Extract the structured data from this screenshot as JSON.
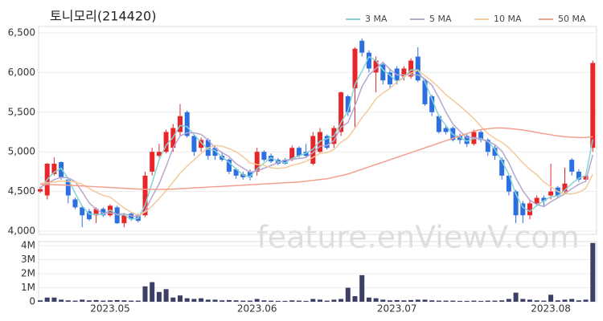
{
  "chart_data": [
    {
      "type": "candlestick",
      "title": "토니모리(214420)",
      "annotation": "feature.enViewV.com",
      "open": [
        4500,
        4450,
        4720,
        4870,
        4650,
        4400,
        4300,
        4250,
        4200,
        4280,
        4200,
        4300,
        4100,
        4220,
        4200,
        4200,
        4750,
        4950,
        5000,
        5050,
        5250,
        5500,
        5200,
        5050,
        5150,
        5050,
        4950,
        4900,
        4780,
        4720,
        4750,
        4750,
        5000,
        4950,
        4900,
        4900,
        4900,
        5050,
        5000,
        4850,
        5000,
        5200,
        5100,
        5250,
        5700,
        5800,
        6400,
        6250,
        6000,
        6100,
        6000,
        6050,
        5950,
        5950,
        6200,
        5900,
        5700,
        5450,
        5300,
        5300,
        5200,
        5200,
        5100,
        5250,
        5150,
        5050,
        4900,
        4700,
        4500,
        4350,
        4200,
        4350,
        4420,
        4450,
        4550,
        4500,
        4900,
        4750,
        4650,
        5050
      ],
      "high": [
        4560,
        4860,
        4930,
        4880,
        4660,
        4420,
        4310,
        4280,
        4300,
        4300,
        4340,
        4320,
        4230,
        4240,
        4220,
        4750,
        5050,
        5100,
        5280,
        5350,
        5600,
        5520,
        5220,
        5180,
        5170,
        5080,
        5000,
        4920,
        4800,
        4750,
        4780,
        5050,
        5020,
        4980,
        4920,
        4920,
        5080,
        5070,
        5100,
        5250,
        5300,
        5220,
        5330,
        5760,
        5720,
        6320,
        6430,
        6280,
        6200,
        6120,
        6050,
        6080,
        6080,
        6180,
        6320,
        5920,
        5720,
        5470,
        5330,
        5320,
        5230,
        5230,
        5280,
        5270,
        5170,
        5080,
        4930,
        4720,
        4520,
        4380,
        4400,
        4450,
        4450,
        4850,
        4570,
        4800,
        4920,
        4780,
        4720,
        6150
      ],
      "low": [
        4480,
        4400,
        4700,
        4650,
        4350,
        4280,
        4050,
        4130,
        4100,
        4180,
        4180,
        4090,
        4050,
        4130,
        4110,
        4180,
        4700,
        4930,
        4980,
        5000,
        5200,
        5180,
        4950,
        5000,
        4900,
        4900,
        4880,
        4720,
        4660,
        4650,
        4640,
        4700,
        4880,
        4860,
        4830,
        4840,
        4880,
        4930,
        4930,
        4830,
        4980,
        5030,
        5050,
        5200,
        5450,
        5300,
        6200,
        6000,
        5750,
        5850,
        5800,
        5850,
        5900,
        5920,
        5880,
        5580,
        5450,
        5230,
        5220,
        5130,
        5100,
        5060,
        5080,
        5120,
        4950,
        4900,
        4650,
        4450,
        4100,
        4100,
        4150,
        4320,
        4320,
        4400,
        4420,
        4480,
        4700,
        4620,
        4620,
        5000
      ],
      "close": [
        4530,
        4850,
        4850,
        4680,
        4450,
        4300,
        4200,
        4150,
        4280,
        4200,
        4320,
        4100,
        4200,
        4150,
        4130,
        4700,
        5000,
        5000,
        5250,
        5300,
        5450,
        5200,
        5000,
        5150,
        4950,
        4950,
        4900,
        4750,
        4700,
        4680,
        4680,
        5000,
        4900,
        4880,
        4850,
        4850,
        5050,
        4950,
        4950,
        5200,
        5250,
        5050,
        5300,
        5750,
        5500,
        6300,
        6250,
        6050,
        6150,
        5900,
        5850,
        5900,
        6050,
        6150,
        5900,
        5600,
        5500,
        5250,
        5250,
        5150,
        5150,
        5100,
        5250,
        5150,
        5000,
        4950,
        4700,
        4500,
        4200,
        4200,
        4350,
        4420,
        4380,
        4500,
        4450,
        4600,
        4750,
        4650,
        4700,
        6120
      ],
      "up_color": "#e8262a",
      "down_color": "#2b6fe0",
      "series": [
        {
          "name": "3 MA",
          "color": "#86d3d3",
          "values": [
            4530,
            4650,
            4743,
            4793,
            4660,
            4477,
            4317,
            4217,
            4210,
            4210,
            4267,
            4207,
            4207,
            4150,
            4160,
            4327,
            4610,
            4900,
            5083,
            5183,
            5333,
            5317,
            5217,
            5117,
            5033,
            5017,
            4933,
            4867,
            4783,
            4710,
            4687,
            4787,
            4860,
            4927,
            4877,
            4860,
            4917,
            4950,
            4983,
            5033,
            5133,
            5167,
            5200,
            5367,
            5517,
            5850,
            6017,
            6200,
            6150,
            6033,
            5967,
            5883,
            5933,
            6033,
            6033,
            5883,
            5667,
            5450,
            5333,
            5217,
            5183,
            5133,
            5167,
            5167,
            5133,
            5033,
            4883,
            4717,
            4467,
            4300,
            4250,
            4323,
            4383,
            4433,
            4443,
            4517,
            4600,
            4667,
            4700,
            5157
          ]
        },
        {
          "name": "5 MA",
          "color": "#b6a6d0",
          "values": [
            4550,
            4600,
            4650,
            4680,
            4672,
            4626,
            4496,
            4356,
            4276,
            4226,
            4230,
            4210,
            4220,
            4194,
            4180,
            4256,
            4436,
            4596,
            4816,
            5050,
            5200,
            5240,
            5240,
            5220,
            5150,
            5050,
            4990,
            4940,
            4850,
            4796,
            4742,
            4762,
            4792,
            4828,
            4862,
            4896,
            4906,
            4916,
            4930,
            4990,
            5070,
            5080,
            5140,
            5310,
            5370,
            5580,
            5820,
            5970,
            6050,
            6130,
            6040,
            5970,
            5970,
            5970,
            5970,
            5920,
            5840,
            5680,
            5500,
            5350,
            5260,
            5180,
            5180,
            5160,
            5130,
            5090,
            5010,
            4860,
            4670,
            4510,
            4390,
            4334,
            4310,
            4370,
            4420,
            4470,
            4536,
            4590,
            4630,
            4964
          ]
        },
        {
          "name": "10 MA",
          "color": "#f4c99c",
          "values": [
            4600,
            4610,
            4620,
            4630,
            4630,
            4620,
            4590,
            4540,
            4490,
            4450,
            4430,
            4360,
            4290,
            4240,
            4200,
            4240,
            4320,
            4410,
            4510,
            4620,
            4730,
            4820,
            4900,
            4980,
            5050,
            5080,
            5070,
            5040,
            5000,
            4940,
            4860,
            4840,
            4830,
            4800,
            4790,
            4800,
            4830,
            4850,
            4880,
            4930,
            4980,
            4990,
            5030,
            5120,
            5180,
            5300,
            5430,
            5540,
            5670,
            5740,
            5800,
            5880,
            5950,
            5990,
            6030,
            5960,
            5890,
            5810,
            5720,
            5650,
            5580,
            5500,
            5420,
            5320,
            5230,
            5170,
            5120,
            5050,
            4960,
            4860,
            4780,
            4710,
            4620,
            4560,
            4500,
            4470,
            4470,
            4490,
            4540,
            4720
          ]
        },
        {
          "name": "50 MA",
          "color": "#f2a08e",
          "values": [
            4590,
            4588,
            4585,
            4582,
            4578,
            4574,
            4570,
            4565,
            4560,
            4555,
            4550,
            4545,
            4540,
            4535,
            4530,
            4528,
            4526,
            4526,
            4528,
            4530,
            4535,
            4540,
            4545,
            4550,
            4555,
            4560,
            4565,
            4570,
            4575,
            4580,
            4585,
            4590,
            4595,
            4600,
            4605,
            4610,
            4615,
            4620,
            4630,
            4640,
            4650,
            4660,
            4680,
            4700,
            4720,
            4750,
            4780,
            4810,
            4840,
            4870,
            4900,
            4930,
            4960,
            4990,
            5020,
            5050,
            5080,
            5110,
            5140,
            5170,
            5200,
            5230,
            5260,
            5280,
            5290,
            5300,
            5300,
            5295,
            5285,
            5275,
            5260,
            5245,
            5230,
            5215,
            5200,
            5190,
            5185,
            5180,
            5180,
            5190
          ]
        }
      ],
      "ylim": [
        3960,
        6580
      ],
      "yticks": [
        {
          "value": 4000,
          "label": "4,000"
        },
        {
          "value": 4500,
          "label": "4,500"
        },
        {
          "value": 5000,
          "label": "5,000"
        },
        {
          "value": 5500,
          "label": "5,500"
        },
        {
          "value": 6000,
          "label": "6,000"
        },
        {
          "value": 6500,
          "label": "6,500"
        }
      ],
      "grid": true
    },
    {
      "type": "bar",
      "color": "#3c3f66",
      "categories": [
        null,
        null,
        null,
        null,
        null,
        null,
        null,
        null,
        null,
        null,
        "2023.05",
        null,
        null,
        null,
        null,
        null,
        null,
        null,
        null,
        null,
        null,
        null,
        null,
        null,
        null,
        null,
        null,
        null,
        null,
        null,
        null,
        "2023.06",
        null,
        null,
        null,
        null,
        null,
        null,
        null,
        null,
        null,
        null,
        null,
        null,
        null,
        null,
        null,
        null,
        null,
        null,
        null,
        "2023.07",
        null,
        null,
        null,
        null,
        null,
        null,
        null,
        null,
        null,
        null,
        null,
        null,
        null,
        null,
        null,
        null,
        null,
        null,
        null,
        null,
        null,
        "2023.08",
        null,
        null,
        null,
        null,
        null,
        null
      ],
      "values": [
        100000,
        300000,
        300000,
        150000,
        100000,
        80000,
        150000,
        100000,
        120000,
        80000,
        100000,
        120000,
        100000,
        80000,
        80000,
        1100000,
        1400000,
        700000,
        900000,
        300000,
        450000,
        250000,
        200000,
        250000,
        150000,
        150000,
        100000,
        120000,
        100000,
        80000,
        80000,
        200000,
        100000,
        80000,
        60000,
        60000,
        100000,
        80000,
        60000,
        200000,
        150000,
        80000,
        150000,
        200000,
        1000000,
        400000,
        1900000,
        300000,
        250000,
        150000,
        100000,
        120000,
        100000,
        120000,
        150000,
        150000,
        100000,
        80000,
        80000,
        80000,
        60000,
        60000,
        80000,
        60000,
        80000,
        80000,
        100000,
        200000,
        650000,
        200000,
        150000,
        100000,
        80000,
        500000,
        100000,
        150000,
        200000,
        100000,
        150000,
        4200000
      ],
      "ylim": [
        0,
        4300000
      ],
      "yticks": [
        0,
        {
          "value": 1000000,
          "label": "1M"
        },
        {
          "value": 2000000,
          "label": "2M"
        },
        {
          "value": 3000000,
          "label": "3M"
        },
        {
          "value": 4000000,
          "label": "4M"
        }
      ],
      "grid": true
    }
  ]
}
